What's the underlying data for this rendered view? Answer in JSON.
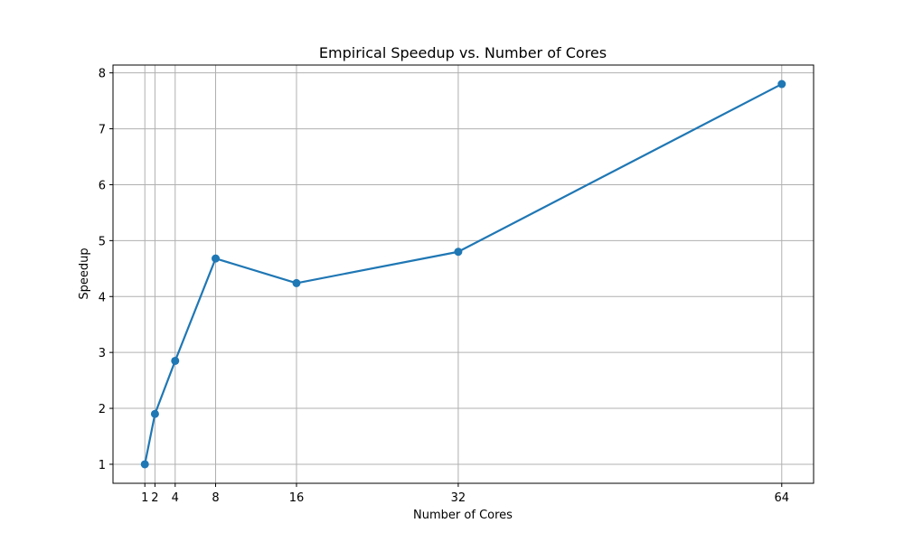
{
  "chart_data": {
    "type": "line",
    "title": "Empirical Speedup vs. Number of Cores",
    "xlabel": "Number of Cores",
    "ylabel": "Speedup",
    "x": [
      1,
      2,
      4,
      8,
      16,
      32,
      64
    ],
    "series": [
      {
        "values": [
          1.0,
          1.9,
          2.85,
          4.68,
          4.24,
          4.8,
          7.8
        ]
      }
    ],
    "xticks": [
      1,
      2,
      4,
      8,
      16,
      32,
      64
    ],
    "yticks": [
      1,
      2,
      3,
      4,
      5,
      6,
      7,
      8
    ],
    "xlim": [
      -2.15,
      67.15
    ],
    "ylim": [
      0.66,
      8.14
    ],
    "grid": true,
    "markers": true,
    "colors": {
      "series": "#1f77b4"
    }
  }
}
